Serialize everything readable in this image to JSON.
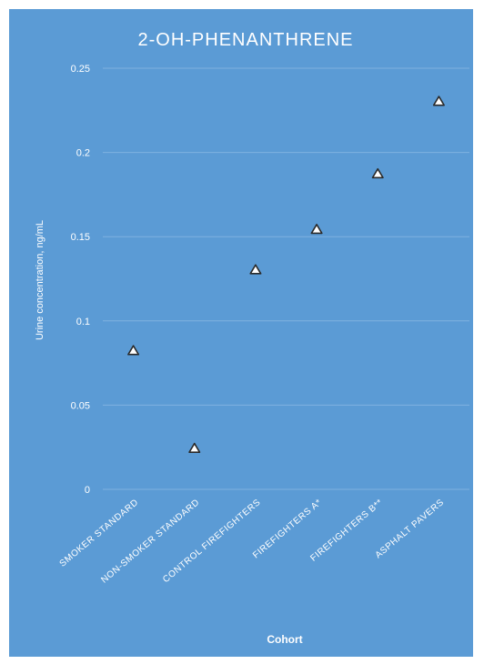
{
  "colors": {
    "background": "#5b9bd5",
    "frame": "#d9d9d9",
    "gridline": "#7fb2e0",
    "text": "#ffffff",
    "marker_fill": "#ffffff",
    "marker_stroke": "#2a2a2a"
  },
  "chart_data": {
    "type": "scatter",
    "title": "2-OH-PHENANTHRENE",
    "xlabel": "Cohort",
    "ylabel": "Urine concentration, ng/mL",
    "categories": [
      "SMOKER STANDARD",
      "NON-SMOKER STANDARD",
      "CONTROL FIREFIGHTERS",
      "FIREFIGHTERS A*",
      "FIREFIGHTERS B**",
      "ASPHALT PAVERS"
    ],
    "series": [
      {
        "values": [
          0.082,
          0.024,
          0.13,
          0.154,
          0.187,
          0.23
        ],
        "marker": "triangle"
      }
    ],
    "ylim": [
      0,
      0.25
    ],
    "yticks": [
      0,
      0.05,
      0.1,
      0.15,
      0.2,
      0.25
    ],
    "ytick_labels": [
      "0",
      "0.05",
      "0.1",
      "0.15",
      "0.2",
      "0.25"
    ],
    "grid": true,
    "legend": "none"
  }
}
